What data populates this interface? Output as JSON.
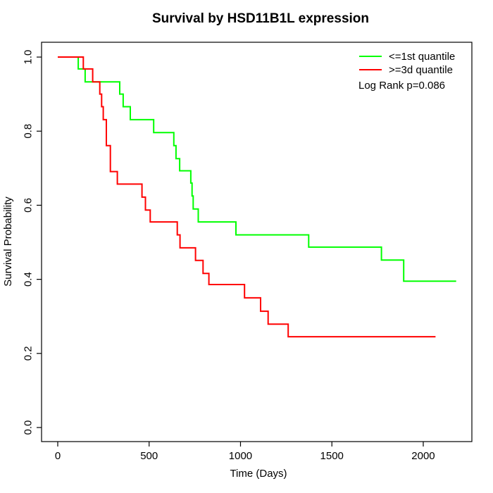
{
  "chart_data": {
    "type": "line",
    "subtype": "kaplan-meier-step",
    "title": "Survival by HSD11B1L expression",
    "xlabel": "Time (Days)",
    "ylabel": "Survival Probability",
    "x_ticks": [
      0,
      500,
      1000,
      1500,
      2000
    ],
    "y_ticks": [
      "0.0",
      "0.2",
      "0.4",
      "0.6",
      "0.8",
      "1.0"
    ],
    "xlim": [
      -88.6,
      2266
    ],
    "ylim": [
      -0.038,
      1.04
    ],
    "grid": false,
    "legend_position": "top-right-inside",
    "annotation": "Log Rank p=0.086",
    "axis_color": "#000000",
    "background_color": "#ffffff",
    "series": [
      {
        "name": "<=1st quantile",
        "color": "#00FF00",
        "end_time": 2180,
        "points": [
          [
            0,
            1.0
          ],
          [
            112,
            0.968
          ],
          [
            150,
            0.933
          ],
          [
            339,
            0.9
          ],
          [
            358,
            0.866
          ],
          [
            397,
            0.831
          ],
          [
            525,
            0.796
          ],
          [
            635,
            0.761
          ],
          [
            647,
            0.726
          ],
          [
            667,
            0.693
          ],
          [
            728,
            0.66
          ],
          [
            735,
            0.625
          ],
          [
            741,
            0.59
          ],
          [
            769,
            0.555
          ],
          [
            975,
            0.52
          ],
          [
            1373,
            0.487
          ],
          [
            1771,
            0.452
          ],
          [
            1893,
            0.395
          ]
        ]
      },
      {
        "name": ">=3d quantile",
        "color": "#FF0000",
        "end_time": 2067,
        "points": [
          [
            0,
            1.0
          ],
          [
            140,
            0.968
          ],
          [
            191,
            0.933
          ],
          [
            230,
            0.9
          ],
          [
            240,
            0.866
          ],
          [
            249,
            0.831
          ],
          [
            266,
            0.761
          ],
          [
            288,
            0.691
          ],
          [
            326,
            0.657
          ],
          [
            461,
            0.622
          ],
          [
            480,
            0.587
          ],
          [
            506,
            0.555
          ],
          [
            654,
            0.52
          ],
          [
            669,
            0.485
          ],
          [
            754,
            0.451
          ],
          [
            795,
            0.416
          ],
          [
            827,
            0.386
          ],
          [
            1022,
            0.35
          ],
          [
            1110,
            0.314
          ],
          [
            1151,
            0.279
          ],
          [
            1261,
            0.245
          ]
        ]
      }
    ]
  }
}
